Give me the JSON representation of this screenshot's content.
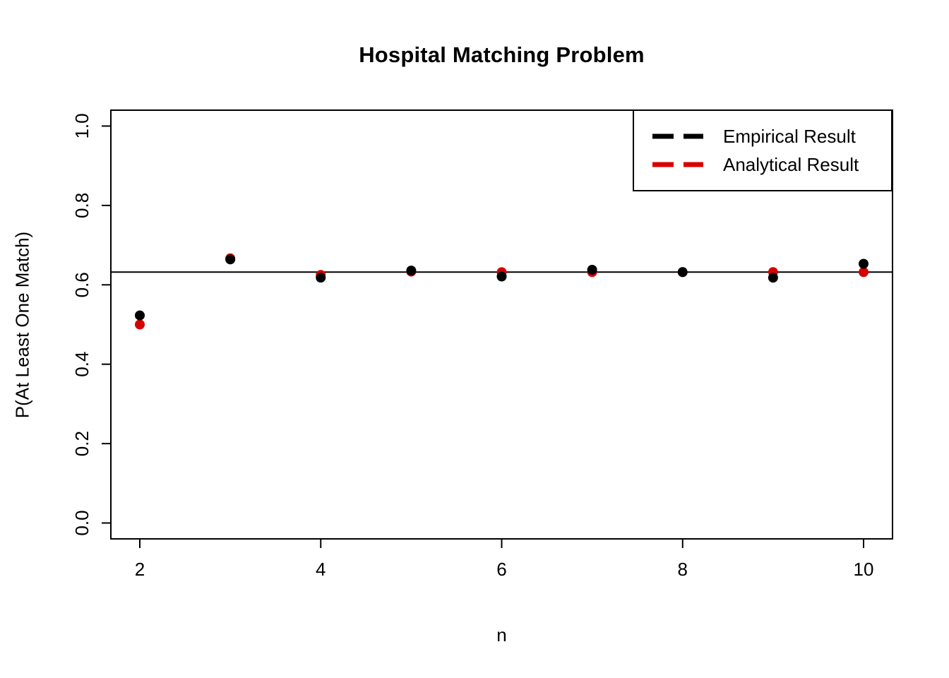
{
  "chart_data": {
    "type": "scatter",
    "title": "Hospital Matching Problem",
    "xlabel": "n",
    "ylabel": "P(At Least One Match)",
    "x_ticks": [
      "2",
      "4",
      "6",
      "8",
      "10"
    ],
    "y_ticks": [
      "0.0",
      "0.2",
      "0.4",
      "0.6",
      "0.8",
      "1.0"
    ],
    "xlim": [
      1.68,
      10.32
    ],
    "ylim": [
      -0.04,
      1.04
    ],
    "grid": false,
    "reference_line_y": 0.6321,
    "point_radius": 7,
    "x": [
      2,
      3,
      4,
      5,
      6,
      7,
      8,
      9,
      10
    ],
    "series": [
      {
        "name": "Empirical Result",
        "color": "#000000",
        "values": [
          0.523,
          0.664,
          0.618,
          0.636,
          0.621,
          0.638,
          0.632,
          0.618,
          0.653
        ]
      },
      {
        "name": "Analytical Result",
        "color": "#d80000",
        "values": [
          0.5,
          0.6667,
          0.625,
          0.6333,
          0.6319,
          0.6321,
          0.6321,
          0.6321,
          0.6321
        ]
      }
    ],
    "legend": {
      "position": "top-right",
      "entries": [
        {
          "label": "Empirical Result"
        },
        {
          "label": "Analytical Result"
        }
      ]
    }
  }
}
